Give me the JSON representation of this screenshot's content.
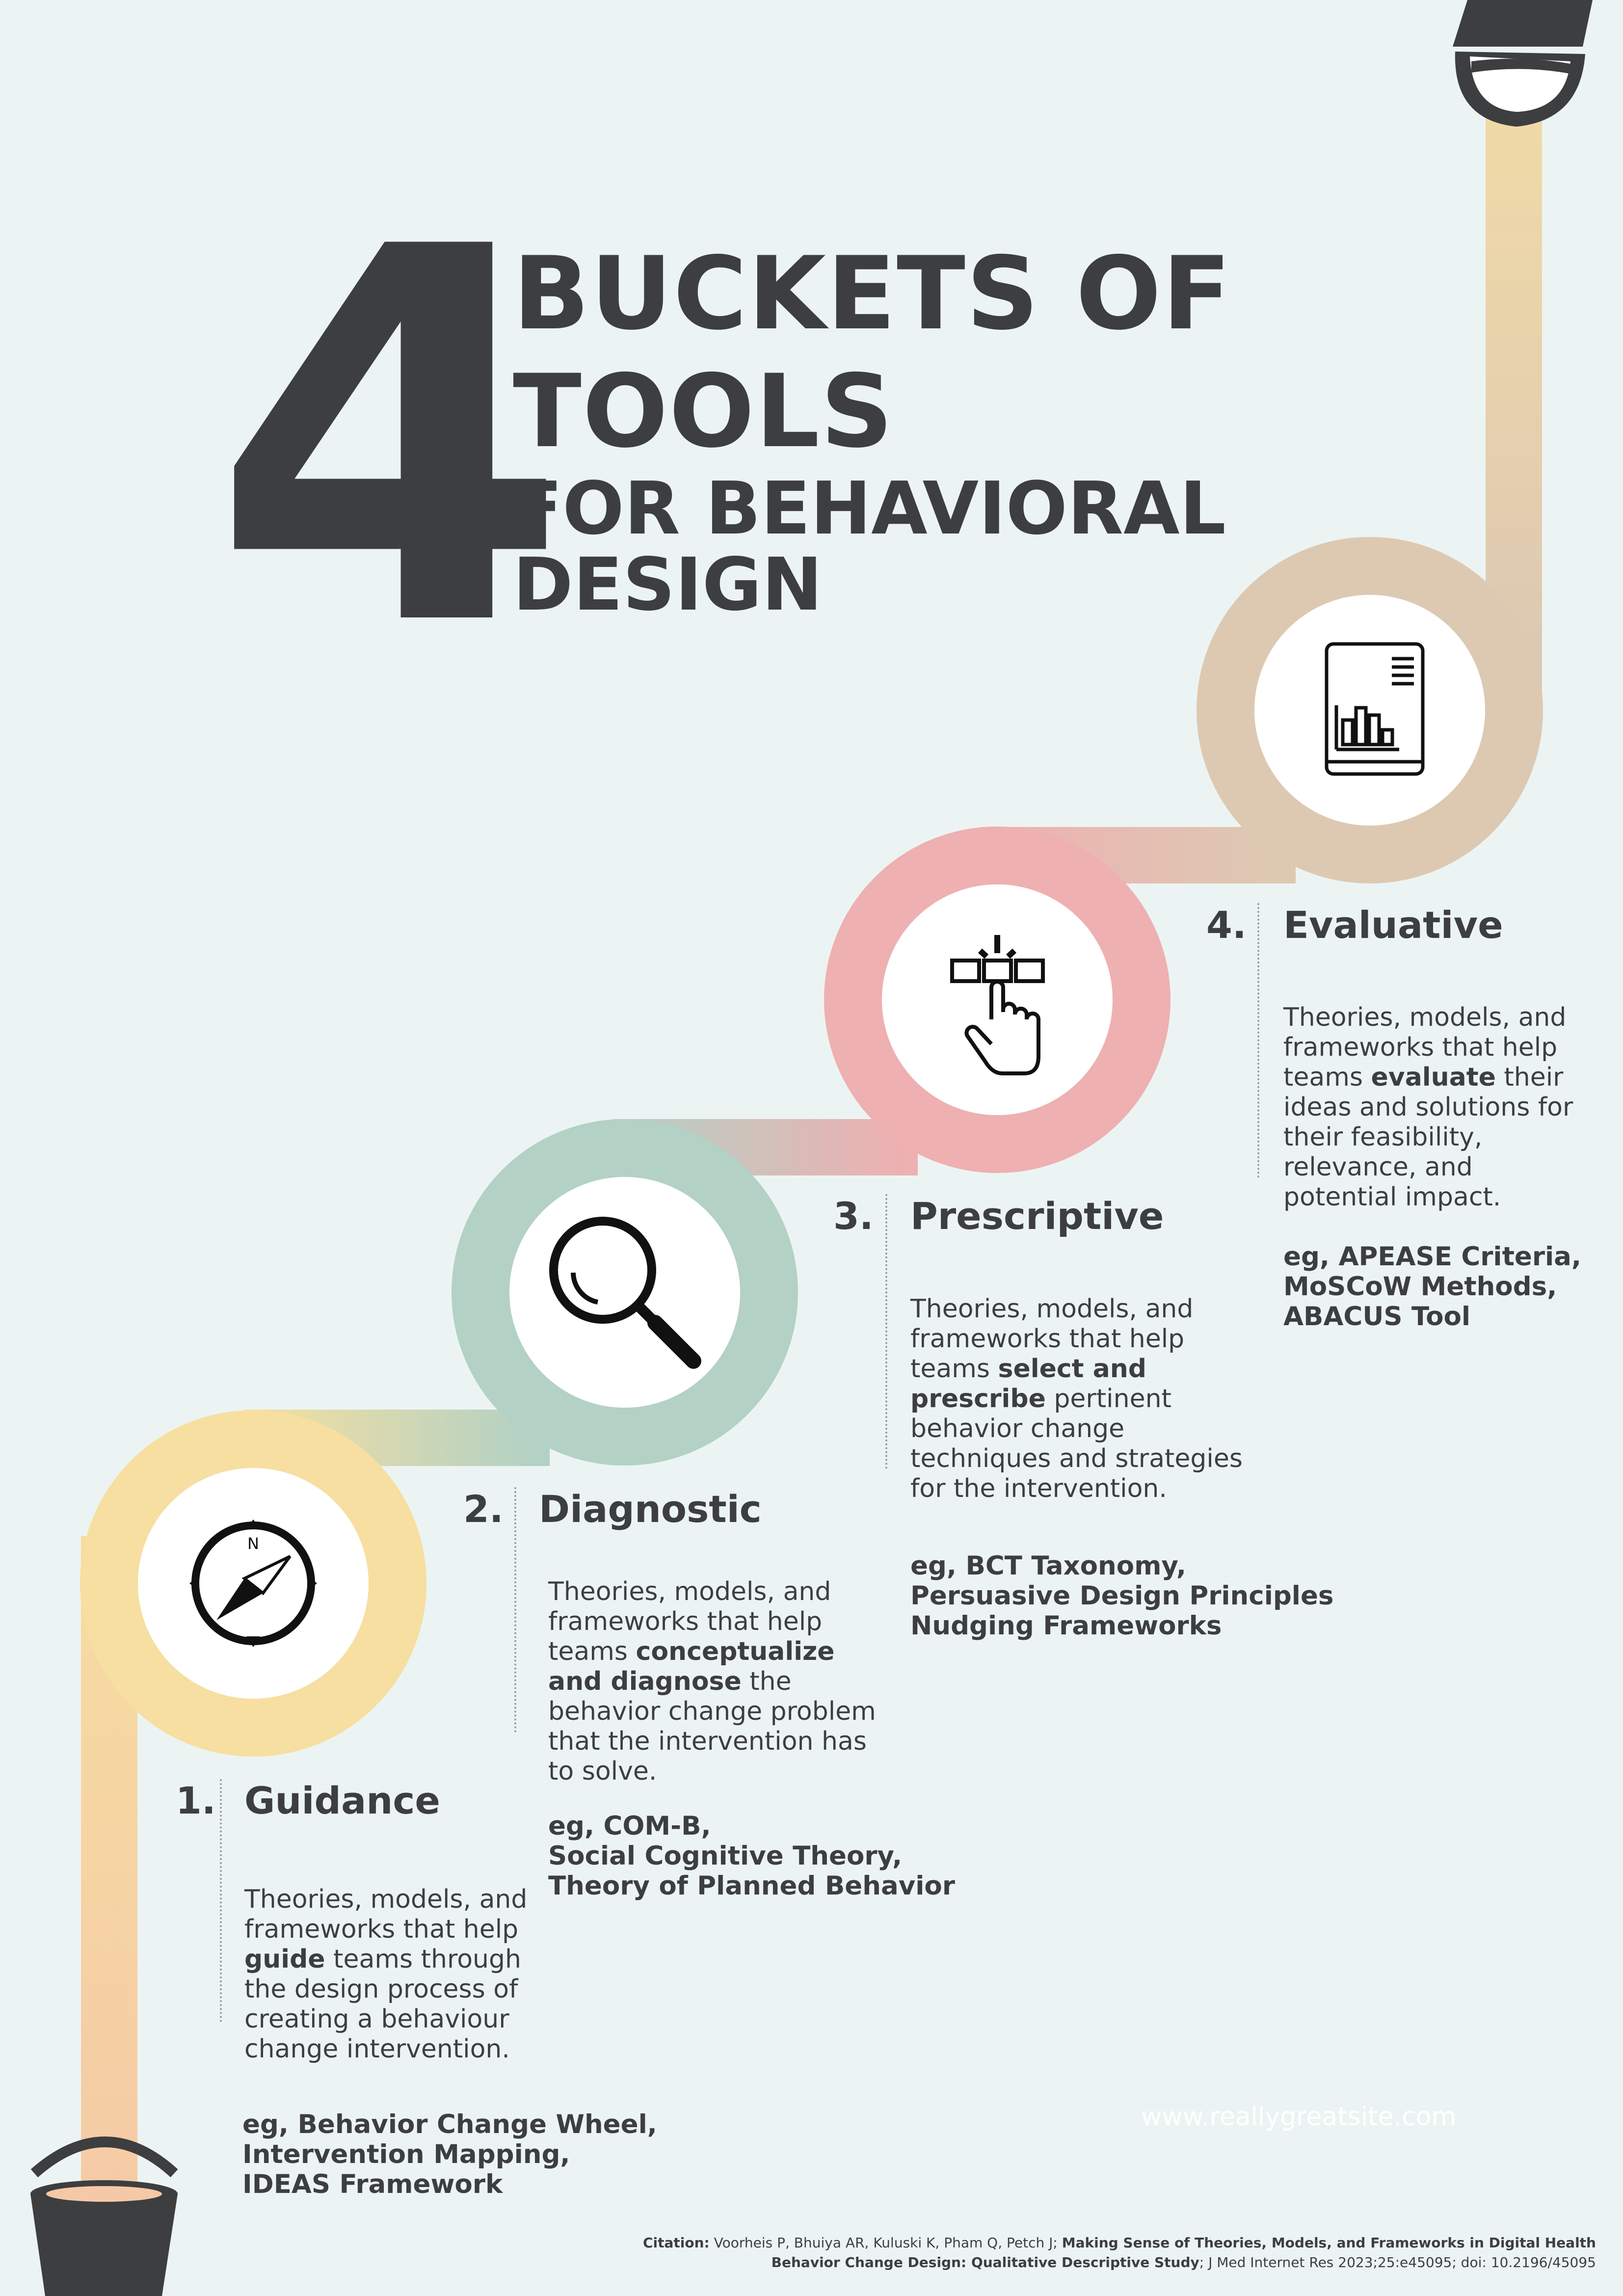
{
  "title": {
    "number": "4",
    "line1": "BUCKETS OF",
    "line2": "TOOLS",
    "line3": "FOR BEHAVIORAL",
    "line4": "DESIGN"
  },
  "colors": {
    "background": "#ecf4f3",
    "text": "#3d3e40",
    "guidance": "#f6dfa0",
    "diagnostic": "#b3d1c4",
    "prescriptive": "#eeb0b1",
    "evaluative": "#ddc9b2",
    "bucket": "#3d3e40"
  },
  "steps": [
    {
      "number": "1.",
      "title": "Guidance",
      "icon": "compass-icon",
      "description": {
        "before": "Theories, models, and frameworks that help ",
        "bold": "guide",
        "after": " teams through the design process of creating a behaviour change intervention."
      },
      "examples": [
        "eg, Behavior Change Wheel,",
        "Intervention Mapping,",
        "IDEAS Framework"
      ]
    },
    {
      "number": "2.",
      "title": "Diagnostic",
      "icon": "magnifying-glass-icon",
      "description": {
        "before": "Theories, models, and frameworks that help teams ",
        "bold": "conceptualize and diagnose",
        "after": " the behavior change problem that the intervention has to solve."
      },
      "examples": [
        "eg, COM-B,",
        "Social Cognitive Theory,",
        "Theory of Planned Behavior"
      ]
    },
    {
      "number": "3.",
      "title": "Prescriptive",
      "icon": "hand-selecting-icon",
      "description": {
        "before": "Theories, models, and frameworks that help teams ",
        "bold": "select and prescribe",
        "after": " pertinent behavior change techniques and strategies for the intervention."
      },
      "examples": [
        "eg, BCT Taxonomy,",
        "Persuasive Design Principles",
        "Nudging Frameworks"
      ]
    },
    {
      "number": "4.",
      "title": "Evaluative",
      "icon": "report-chart-icon",
      "description": {
        "before": "Theories, models, and frameworks that help teams ",
        "bold": "evaluate",
        "after": " their ideas and solutions for their feasibility, relevance, and potential impact."
      },
      "examples": [
        "eg, APEASE Criteria,",
        "MoSCoW Methods,",
        "ABACUS Tool"
      ]
    }
  ],
  "website": "www.reallygreatsite.com",
  "citation": {
    "label": "Citation:",
    "authors": " Voorheis P, Bhuiya AR, Kuluski K, Pham Q, Petch J; ",
    "title": "Making Sense of Theories, Models, and Frameworks in Digital Health Behavior Change Design: Qualitative Descriptive Study",
    "rest": "; J Med Internet Res 2023;25:e45095; doi: 10.2196/45095"
  }
}
